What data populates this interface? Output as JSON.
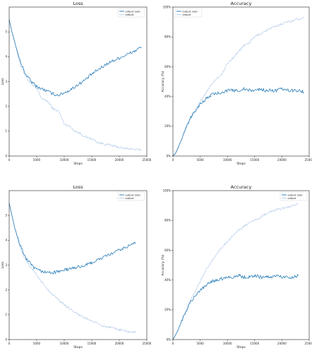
{
  "colors": {
    "val": "#1f77b4",
    "train": "#aec7e8"
  },
  "chart_data": [
    {
      "type": "line",
      "title": "Loss",
      "xlabel": "Steps",
      "ylabel": "Loss",
      "xlim": [
        0,
        25000
      ],
      "ylim": [
        0,
        6
      ],
      "xticks": [
        0,
        5000,
        10000,
        15000,
        20000,
        25000
      ],
      "xtick_labels": [
        "0",
        "5000",
        "10000",
        "15000",
        "20000",
        "25000"
      ],
      "yticks": [
        0,
        1,
        2,
        3,
        4,
        5
      ],
      "ytick_labels": [
        "0",
        "1",
        "2",
        "3",
        "4",
        "5"
      ],
      "legend_position": "top-right",
      "series": [
        {
          "name": "output (val)",
          "color": "#1f77b4",
          "x": [
            0,
            500,
            1000,
            2000,
            3000,
            4000,
            5000,
            6000,
            7000,
            8000,
            9000,
            10000,
            11000,
            12000,
            13000,
            14000,
            15000,
            16000,
            17000,
            18000,
            19000,
            20000,
            21000,
            22000,
            23000,
            24000
          ],
          "y": [
            5.5,
            5.0,
            4.6,
            3.8,
            3.3,
            3.0,
            2.8,
            2.7,
            2.6,
            2.5,
            2.45,
            2.55,
            2.65,
            2.8,
            2.95,
            3.1,
            3.3,
            3.45,
            3.6,
            3.75,
            3.85,
            3.95,
            4.05,
            4.15,
            4.25,
            4.4
          ]
        },
        {
          "name": "output",
          "color": "#aec7e8",
          "x": [
            0,
            500,
            1000,
            2000,
            3000,
            4000,
            5000,
            6000,
            7000,
            8000,
            9000,
            10000,
            11000,
            12000,
            13000,
            14000,
            15000,
            16000,
            17000,
            18000,
            19000,
            20000,
            21000,
            22000,
            23000,
            24000
          ],
          "y": [
            5.5,
            5.0,
            4.6,
            3.7,
            3.2,
            2.9,
            2.7,
            2.3,
            2.2,
            1.9,
            1.8,
            1.3,
            1.2,
            1.0,
            0.9,
            0.75,
            0.7,
            0.55,
            0.5,
            0.45,
            0.4,
            0.35,
            0.3,
            0.3,
            0.25,
            0.25
          ]
        }
      ]
    },
    {
      "type": "line",
      "title": "Accuracy",
      "xlabel": "Steps",
      "ylabel": "Accuracy (%)",
      "xlim": [
        0,
        25000
      ],
      "ylim": [
        0,
        1
      ],
      "xticks": [
        0,
        5000,
        10000,
        15000,
        20000,
        25000
      ],
      "xtick_labels": [
        "0",
        "5000",
        "10000",
        "15000",
        "20000",
        "25000"
      ],
      "yticks": [
        0,
        0.2,
        0.4,
        0.6,
        0.8,
        1.0
      ],
      "ytick_labels": [
        "0%",
        "20%",
        "40%",
        "60%",
        "80%",
        "100%"
      ],
      "legend_position": "top-left",
      "series": [
        {
          "name": "output (val)",
          "color": "#1f77b4",
          "x": [
            0,
            500,
            1000,
            2000,
            3000,
            4000,
            5000,
            6000,
            7000,
            8000,
            9000,
            10000,
            11000,
            12000,
            13000,
            14000,
            15000,
            16000,
            17000,
            18000,
            19000,
            20000,
            21000,
            22000,
            23000,
            24000
          ],
          "y": [
            0.0,
            0.02,
            0.06,
            0.15,
            0.24,
            0.3,
            0.35,
            0.38,
            0.41,
            0.42,
            0.43,
            0.44,
            0.44,
            0.44,
            0.45,
            0.44,
            0.44,
            0.45,
            0.44,
            0.44,
            0.44,
            0.45,
            0.44,
            0.44,
            0.44,
            0.43
          ]
        },
        {
          "name": "output",
          "color": "#aec7e8",
          "x": [
            0,
            500,
            1000,
            2000,
            3000,
            4000,
            5000,
            6000,
            7000,
            8000,
            9000,
            10000,
            11000,
            12000,
            13000,
            14000,
            15000,
            16000,
            17000,
            18000,
            19000,
            20000,
            21000,
            22000,
            23000,
            24000
          ],
          "y": [
            0.0,
            0.02,
            0.06,
            0.15,
            0.24,
            0.3,
            0.36,
            0.42,
            0.48,
            0.52,
            0.55,
            0.62,
            0.66,
            0.7,
            0.74,
            0.76,
            0.8,
            0.82,
            0.84,
            0.86,
            0.87,
            0.89,
            0.9,
            0.91,
            0.92,
            0.93
          ]
        }
      ]
    },
    {
      "type": "line",
      "title": "Loss",
      "xlabel": "Steps",
      "ylabel": "Loss",
      "xlim": [
        0,
        25000
      ],
      "ylim": [
        0,
        6
      ],
      "xticks": [
        0,
        5000,
        10000,
        15000,
        20000,
        25000
      ],
      "xtick_labels": [
        "0",
        "5000",
        "10000",
        "15000",
        "20000",
        "25000"
      ],
      "yticks": [
        0,
        1,
        2,
        3,
        4,
        5
      ],
      "ytick_labels": [
        "0",
        "1",
        "2",
        "3",
        "4",
        "5"
      ],
      "legend_position": "top-right",
      "series": [
        {
          "name": "output (val)",
          "color": "#1f77b4",
          "x": [
            0,
            500,
            1000,
            2000,
            3000,
            4000,
            5000,
            6000,
            7000,
            8000,
            9000,
            10000,
            11000,
            12000,
            13000,
            14000,
            15000,
            16000,
            17000,
            18000,
            19000,
            20000,
            21000,
            22000,
            23000
          ],
          "y": [
            5.5,
            5.0,
            4.5,
            3.8,
            3.3,
            3.0,
            2.8,
            2.75,
            2.7,
            2.7,
            2.75,
            2.8,
            2.85,
            2.9,
            2.95,
            3.0,
            3.1,
            3.2,
            3.3,
            3.4,
            3.5,
            3.6,
            3.7,
            3.8,
            3.9
          ]
        },
        {
          "name": "output",
          "color": "#aec7e8",
          "x": [
            0,
            500,
            1000,
            2000,
            3000,
            4000,
            5000,
            6000,
            7000,
            8000,
            9000,
            10000,
            11000,
            12000,
            13000,
            14000,
            15000,
            16000,
            17000,
            18000,
            19000,
            20000,
            21000,
            22000,
            23000
          ],
          "y": [
            5.5,
            5.0,
            4.5,
            3.7,
            3.2,
            2.9,
            2.6,
            2.3,
            2.0,
            1.8,
            1.6,
            1.4,
            1.25,
            1.1,
            0.95,
            0.85,
            0.75,
            0.65,
            0.55,
            0.5,
            0.45,
            0.4,
            0.35,
            0.3,
            0.3
          ]
        }
      ]
    },
    {
      "type": "line",
      "title": "Accuracy",
      "xlabel": "Steps",
      "ylabel": "Accuracy (%)",
      "xlim": [
        0,
        25000
      ],
      "ylim": [
        0,
        1
      ],
      "xticks": [
        0,
        5000,
        10000,
        15000,
        20000,
        25000
      ],
      "xtick_labels": [
        "0",
        "5000",
        "10000",
        "15000",
        "20000",
        "25000"
      ],
      "yticks": [
        0,
        0.2,
        0.4,
        0.6,
        0.8,
        1.0
      ],
      "ytick_labels": [
        "0%",
        "20%",
        "40%",
        "60%",
        "80%",
        "100%"
      ],
      "legend_position": "top-right",
      "series": [
        {
          "name": "output (val)",
          "color": "#1f77b4",
          "x": [
            0,
            500,
            1000,
            2000,
            3000,
            4000,
            5000,
            6000,
            7000,
            8000,
            9000,
            10000,
            11000,
            12000,
            13000,
            14000,
            15000,
            16000,
            17000,
            18000,
            19000,
            20000,
            21000,
            22000,
            23000
          ],
          "y": [
            0.0,
            0.03,
            0.07,
            0.16,
            0.24,
            0.29,
            0.33,
            0.36,
            0.39,
            0.4,
            0.41,
            0.42,
            0.42,
            0.43,
            0.42,
            0.42,
            0.43,
            0.42,
            0.42,
            0.42,
            0.43,
            0.42,
            0.42,
            0.42,
            0.43
          ]
        },
        {
          "name": "output",
          "color": "#aec7e8",
          "x": [
            0,
            500,
            1000,
            2000,
            3000,
            4000,
            5000,
            6000,
            7000,
            8000,
            9000,
            10000,
            11000,
            12000,
            13000,
            14000,
            15000,
            16000,
            17000,
            18000,
            19000,
            20000,
            21000,
            22000,
            23000
          ],
          "y": [
            0.0,
            0.03,
            0.07,
            0.16,
            0.25,
            0.32,
            0.39,
            0.46,
            0.52,
            0.57,
            0.62,
            0.66,
            0.7,
            0.73,
            0.76,
            0.78,
            0.8,
            0.82,
            0.84,
            0.86,
            0.87,
            0.88,
            0.89,
            0.9,
            0.91
          ]
        }
      ]
    }
  ]
}
